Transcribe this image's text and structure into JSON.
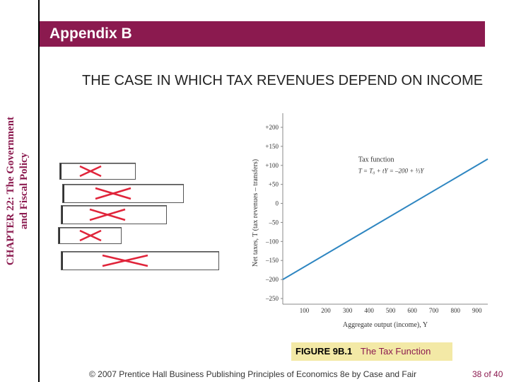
{
  "header": {
    "title": "Appendix B"
  },
  "sidebar": {
    "line1": "CHAPTER 22: The Government",
    "line2": "and Fiscal Policy"
  },
  "slide_title": "THE CASE IN WHICH TAX REVENUES DEPEND ON INCOME",
  "colors": {
    "banner": "#8b1a4f",
    "line": "#2e86c1",
    "cross": "#e0243a",
    "caption_bg": "#f3e9a6"
  },
  "chart_data": {
    "type": "line",
    "xlabel": "Aggregate output (income), Y",
    "ylabel": "Net taxes, T (tax revenues – transfers)",
    "x_ticks": [
      100,
      200,
      300,
      400,
      500,
      600,
      700,
      800,
      900
    ],
    "y_ticks": [
      "+200",
      "+150",
      "+100",
      "+50",
      "0",
      "–50",
      "–100",
      "–150",
      "–200",
      "–250"
    ],
    "y_tick_values": [
      200,
      150,
      100,
      50,
      0,
      -50,
      -100,
      -150,
      -200,
      -250
    ],
    "xlim": [
      0,
      950
    ],
    "ylim": [
      -250,
      200
    ],
    "series": [
      {
        "values_x": [
          0,
          950
        ],
        "values_y": [
          -200,
          116.7
        ]
      }
    ],
    "annotation": {
      "line1": "Tax function",
      "line2": "T = T₀ + tY = –200 + ⅓Y"
    }
  },
  "figure": {
    "label": "FIGURE 9B.1",
    "caption": "The Tax Function"
  },
  "footer": {
    "text": "© 2007 Prentice Hall Business Publishing Principles of Economics 8e by Case and Fair"
  },
  "page": {
    "number": "38 of 40"
  }
}
